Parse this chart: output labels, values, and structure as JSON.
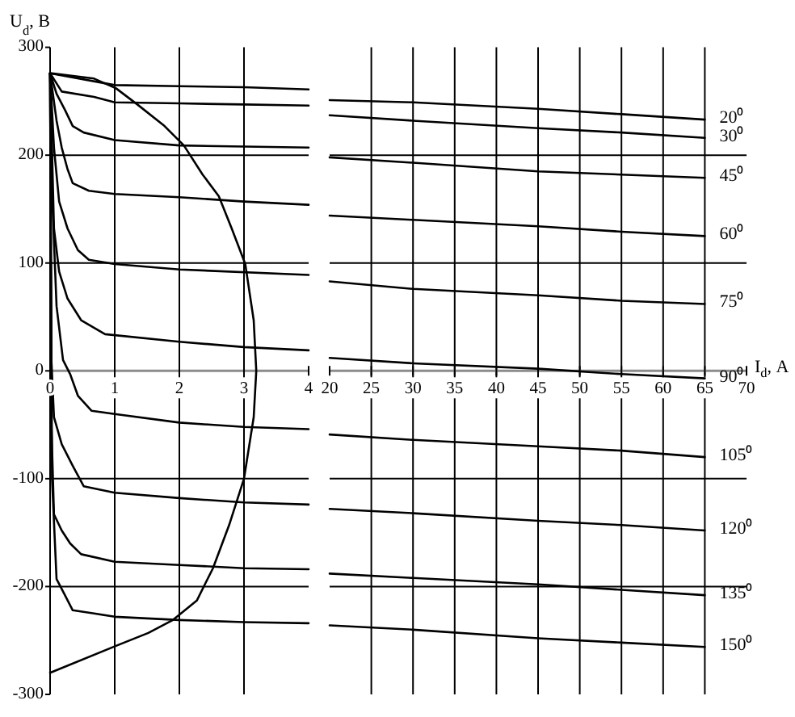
{
  "chart_data": [
    {
      "type": "line",
      "ylabel": "U$_{d}$, В",
      "xlim": [
        0,
        4
      ],
      "xticks": [
        0,
        1,
        2,
        3,
        4
      ],
      "ylim": [
        -300,
        300
      ],
      "yticks": [
        -300,
        -200,
        -100,
        0,
        100,
        200,
        300
      ],
      "grid": true,
      "series": [
        {
          "color": "#000000",
          "x": [
            0,
            1,
            2,
            3,
            4
          ],
          "values": [
            276,
            265,
            264,
            263,
            261
          ]
        },
        {
          "color": "#000000",
          "x": [
            0,
            0.18,
            0.68,
            1,
            2,
            3,
            4
          ],
          "values": [
            276,
            259,
            254,
            249,
            248,
            247,
            246
          ]
        },
        {
          "color": "#000000",
          "x": [
            0,
            0.1,
            0.23,
            0.35,
            0.52,
            1,
            2,
            4
          ],
          "values": [
            276,
            257,
            242,
            227,
            221,
            214,
            209,
            207
          ]
        },
        {
          "color": "#000000",
          "x": [
            0,
            0.1,
            0.18,
            0.27,
            0.35,
            0.6,
            1,
            2,
            3,
            4
          ],
          "values": [
            276,
            232,
            207,
            187,
            174,
            167,
            164,
            161,
            157,
            154
          ]
        },
        {
          "color": "#000000",
          "x": [
            0,
            0.06,
            0.14,
            0.27,
            0.43,
            0.6,
            1,
            2,
            4
          ],
          "values": [
            276,
            207,
            157,
            132,
            112,
            103,
            99,
            94,
            89
          ]
        },
        {
          "color": "#000000",
          "x": [
            0,
            0.06,
            0.14,
            0.27,
            0.48,
            0.85,
            2,
            3,
            4
          ],
          "values": [
            276,
            132,
            92,
            67,
            47,
            34,
            27,
            22,
            19
          ]
        },
        {
          "color": "#000000",
          "x": [
            0,
            0.04,
            0.1,
            0.2,
            0.31,
            0.43,
            0.64,
            1,
            2,
            3,
            4
          ],
          "values": [
            276,
            150,
            60,
            10,
            -3,
            -23,
            -37,
            -40,
            -48,
            -52,
            -54
          ]
        },
        {
          "color": "#000000",
          "x": [
            0,
            0.02,
            0.06,
            0.18,
            0.35,
            0.52,
            1,
            2,
            3,
            4
          ],
          "values": [
            276,
            10,
            -43,
            -68,
            -88,
            -107,
            -113,
            -118,
            -122,
            -124
          ]
        },
        {
          "color": "#000000",
          "x": [
            0,
            0.02,
            0.06,
            0.18,
            0.31,
            0.48,
            1,
            2,
            3,
            4
          ],
          "values": [
            276,
            -50,
            -133,
            -148,
            -160,
            -170,
            -177,
            -180,
            -183,
            -184
          ]
        },
        {
          "color": "#000000",
          "x": [
            0,
            0.03,
            0.1,
            0.23,
            0.35,
            0.68,
            1,
            2,
            3,
            4
          ],
          "values": [
            276,
            -100,
            -193,
            -208,
            -222,
            -225,
            -228,
            -231,
            -233,
            -234
          ]
        },
        {
          "color": "#000000",
          "x": [
            0,
            1.02,
            1.52,
            1.9,
            2.27,
            2.52,
            2.77,
            3.0,
            3.15,
            3.19,
            3.15,
            3.02,
            2.81,
            2.61,
            2.36,
            2.07,
            1.77,
            1.35,
            1.02,
            0.68,
            0
          ],
          "values": [
            -280,
            -255,
            -243,
            -231,
            -213,
            -183,
            -143,
            -100,
            -43,
            0,
            47,
            99,
            132,
            162,
            182,
            209,
            227,
            247,
            262,
            271,
            276
          ]
        }
      ]
    },
    {
      "type": "line",
      "xlabel": "I$_{d}$, А",
      "xlim": [
        20,
        70
      ],
      "xticks": [
        20,
        25,
        30,
        35,
        40,
        45,
        50,
        55,
        60,
        65,
        70
      ],
      "ylim": [
        -300,
        300
      ],
      "yticks": [
        -300,
        -200,
        -100,
        0,
        100,
        200,
        300
      ],
      "tick_labels": "x",
      "grid": true,
      "series": [
        {
          "name": "20⁰",
          "color": "#000000",
          "x": [
            20,
            30,
            45,
            55,
            65
          ],
          "values": [
            251,
            249,
            243,
            238,
            233
          ]
        },
        {
          "name": "30⁰",
          "color": "#000000",
          "x": [
            20,
            30,
            45,
            55,
            65
          ],
          "values": [
            237,
            232,
            225,
            221,
            216
          ]
        },
        {
          "name": "45⁰",
          "color": "#000000",
          "x": [
            20,
            30,
            45,
            55,
            65
          ],
          "values": [
            198,
            193,
            185,
            182,
            179
          ]
        },
        {
          "name": "60⁰",
          "color": "#000000",
          "x": [
            20,
            30,
            45,
            55,
            65
          ],
          "values": [
            144,
            140,
            134,
            129,
            125
          ]
        },
        {
          "name": "75⁰",
          "color": "#000000",
          "x": [
            20,
            30,
            45,
            55,
            65
          ],
          "values": [
            83,
            76,
            70,
            65,
            62
          ]
        },
        {
          "name": "90⁰",
          "color": "#000000",
          "x": [
            20,
            30,
            45,
            55,
            65
          ],
          "values": [
            12,
            7,
            2,
            -3,
            -7
          ]
        },
        {
          "name": "105⁰",
          "color": "#000000",
          "x": [
            20,
            30,
            45,
            55,
            65
          ],
          "values": [
            -59,
            -64,
            -70,
            -74,
            -80
          ]
        },
        {
          "name": "120⁰",
          "color": "#000000",
          "x": [
            20,
            30,
            45,
            55,
            65
          ],
          "values": [
            -128,
            -132,
            -139,
            -143,
            -148
          ]
        },
        {
          "name": "135⁰",
          "color": "#000000",
          "x": [
            20,
            30,
            45,
            55,
            65
          ],
          "values": [
            -188,
            -192,
            -198,
            -203,
            -208
          ]
        },
        {
          "name": "150⁰",
          "color": "#000000",
          "x": [
            20,
            30,
            45,
            55,
            65
          ],
          "values": [
            -236,
            -240,
            -248,
            -252,
            -256
          ]
        }
      ]
    }
  ]
}
